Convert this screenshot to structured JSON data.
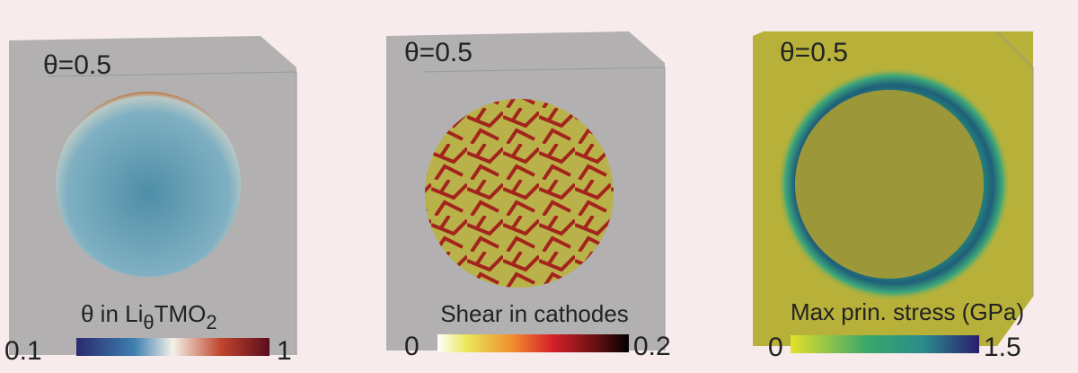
{
  "panels": [
    {
      "label": "θ=0.5",
      "colorbar": {
        "title_parts": [
          "θ in Li",
          "θ",
          "TMO",
          "2"
        ],
        "min": "0.1",
        "max": "1"
      }
    },
    {
      "label": "θ=0.5",
      "colorbar": {
        "title": "Shear in cathodes",
        "min": "0",
        "max": "0.2"
      }
    },
    {
      "label": "θ=0.5",
      "colorbar": {
        "title": "Max prin. stress (GPa)",
        "min": "0",
        "max": "1.5"
      }
    }
  ]
}
